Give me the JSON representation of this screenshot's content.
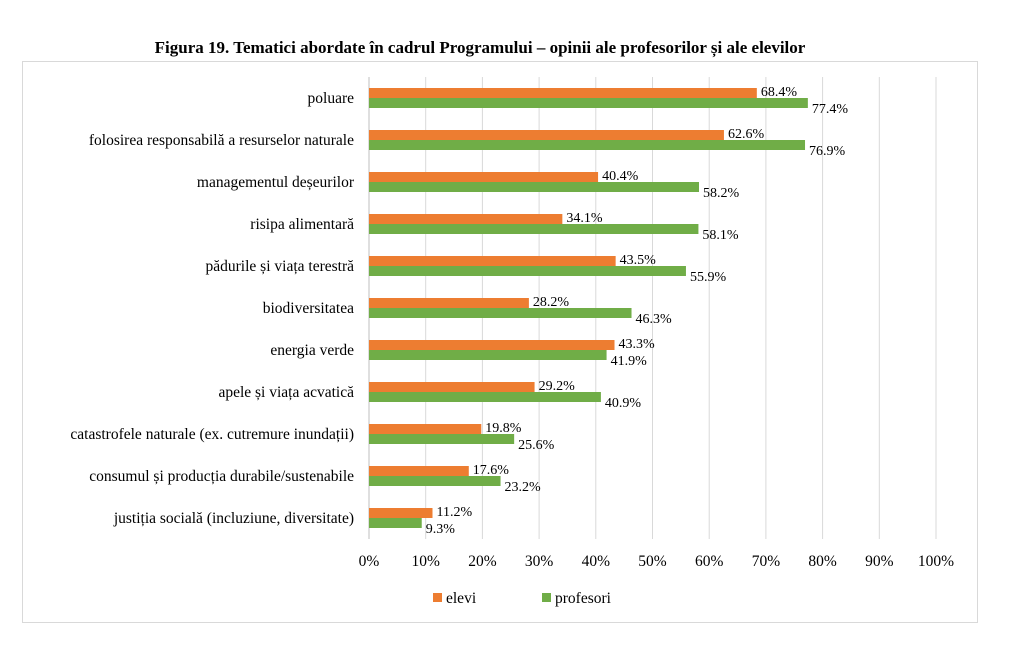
{
  "chart_data": {
    "type": "bar",
    "orientation": "horizontal",
    "title": "Figura 19. Tematici abordate în cadrul Programului – opinii ale profesorilor și ale elevilor",
    "categories": [
      "poluare",
      "folosirea responsabilă a resurselor naturale",
      "managementul deșeurilor",
      "risipa alimentară",
      "pădurile și viața terestră",
      "biodiversitatea",
      "energia verde",
      "apele și viața acvatică",
      "catastrofele naturale (ex. cutremure inundații)",
      "consumul și producția durabile/sustenabile",
      "justiția socială (incluziune, diversitate)"
    ],
    "series": [
      {
        "name": "elevi",
        "color": "#ED7D31",
        "values": [
          68.4,
          62.6,
          40.4,
          34.1,
          43.5,
          28.2,
          43.3,
          29.2,
          19.8,
          17.6,
          11.2
        ],
        "labels": [
          "68.4%",
          "62.6%",
          "40.4%",
          "34.1%",
          "43.5%",
          "28.2%",
          "43.3%",
          "29.2%",
          "19.8%",
          "17.6%",
          "11.2%"
        ]
      },
      {
        "name": "profesori",
        "color": "#70AD47",
        "values": [
          77.4,
          76.9,
          58.2,
          58.1,
          55.9,
          46.3,
          41.9,
          40.9,
          25.6,
          23.2,
          9.3
        ],
        "labels": [
          "77.4%",
          "76.9%",
          "58.2%",
          "58.1%",
          "55.9%",
          "46.3%",
          "41.9%",
          "40.9%",
          "25.6%",
          "23.2%",
          "9.3%"
        ]
      }
    ],
    "xlim": [
      0,
      100
    ],
    "xticks": [
      "0%",
      "10%",
      "20%",
      "30%",
      "40%",
      "50%",
      "60%",
      "70%",
      "80%",
      "90%",
      "100%"
    ],
    "grid": "vertical",
    "legend": "bottom",
    "xlabel": "",
    "ylabel": ""
  }
}
